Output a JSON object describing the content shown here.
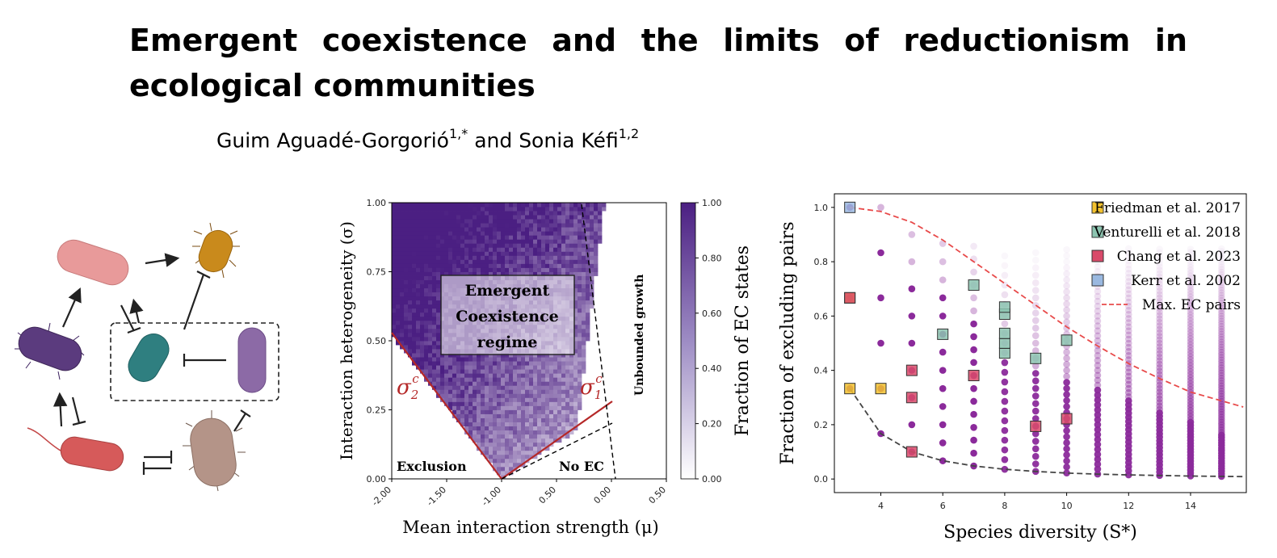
{
  "paper": {
    "title": "Emergent coexistence and the limits of reductionism in ecological communities",
    "authors": [
      {
        "name": "Guim Aguadé-Gorgorió",
        "affil": "1,*"
      },
      {
        "name": "Sonia Kéfi",
        "affil": "1,2"
      }
    ],
    "author_sep": " and "
  },
  "colors": {
    "purple": "#5a2d91",
    "red_line": "#b52828",
    "dashed_red": "#e84a4a",
    "friedman": "#f2c12e",
    "venturelli": "#8cc4b0",
    "chang": "#d94a6a",
    "kerr": "#9ab8e0",
    "dots": "#8b2a9b"
  },
  "bacteria_icons": [
    "pink-bacterium-icon",
    "orange-bacterium-icon",
    "purple-bacterium-icon",
    "teal-bacterium-icon",
    "lavender-bacterium-icon",
    "red-bacterium-icon",
    "tan-bacterium-icon"
  ],
  "chart_data": [
    {
      "type": "heatmap",
      "xlabel": "Mean interaction strength (μ)",
      "ylabel": "Interaction heterogeneity (σ)",
      "xticks": [
        "-2.00",
        "-1.50",
        "-1.00",
        "0.50",
        "0.00",
        "0.50"
      ],
      "yticks": [
        "0.00",
        "0.25",
        "0.50",
        "0.75",
        "1.00"
      ],
      "xlim": [
        -2.0,
        0.5
      ],
      "ylim": [
        0.0,
        1.0
      ],
      "colorbar": {
        "label": "Fraction of EC states",
        "ticks": [
          "0.00",
          "0.20",
          "0.40",
          "0.60",
          "0.80",
          "1.00"
        ]
      },
      "annotations": {
        "box_lines": [
          "Emergent",
          "Coexistence",
          "regime"
        ],
        "exclusion": "Exclusion",
        "no_ec": "No EC",
        "unbounded": "Unbounded growth",
        "sigma2": "σ",
        "sigma2_sub": "2",
        "sigma1": "σ",
        "sigma1_sub": "1",
        "sigma_sup": "c"
      }
    },
    {
      "type": "scatter",
      "xlabel": "Species diversity (S*)",
      "ylabel": "Fraction of excluding pairs",
      "xlim": [
        2.5,
        15.8
      ],
      "ylim": [
        -0.05,
        1.05
      ],
      "xticks": [
        "4",
        "6",
        "8",
        "10",
        "12",
        "14"
      ],
      "yticks": [
        "0.0",
        "0.2",
        "0.4",
        "0.6",
        "0.8",
        "1.0"
      ],
      "legend_position": "top-right",
      "series": [
        {
          "name": "Friedman et al. 2017",
          "marker": "square",
          "color": "#f2c12e",
          "x": [
            3,
            3,
            4
          ],
          "y": [
            0.667,
            0.333,
            0.333
          ]
        },
        {
          "name": "Venturelli et al. 2018",
          "marker": "square",
          "color": "#8cc4b0",
          "x": [
            6,
            7,
            8,
            8,
            8,
            8,
            8,
            9,
            10
          ],
          "y": [
            0.533,
            0.714,
            0.607,
            0.633,
            0.464,
            0.5,
            0.536,
            0.444,
            0.511
          ]
        },
        {
          "name": "Chang et al. 2023",
          "marker": "square",
          "color": "#d94a6a",
          "x": [
            3,
            5,
            5,
            5,
            7,
            9,
            10
          ],
          "y": [
            0.667,
            0.4,
            0.3,
            0.1,
            0.381,
            0.194,
            0.222
          ]
        },
        {
          "name": "Kerr et al. 2002",
          "marker": "square",
          "color": "#9ab8e0",
          "x": [
            3
          ],
          "y": [
            1.0
          ]
        },
        {
          "name": "Max. EC pairs",
          "marker": "dashed-line",
          "color": "#e84a4a",
          "x": [
            3,
            4,
            5,
            6,
            7,
            8,
            9,
            10,
            11,
            12,
            13,
            14,
            15.7
          ],
          "y": [
            1.0,
            0.985,
            0.945,
            0.88,
            0.8,
            0.72,
            0.64,
            0.56,
            0.49,
            0.425,
            0.37,
            0.32,
            0.265
          ]
        },
        {
          "name": "",
          "marker": "dashed-line",
          "color": "#444444",
          "x": [
            3,
            4,
            5,
            6,
            7,
            8,
            9,
            10,
            11,
            12,
            13,
            14,
            15.7
          ],
          "y": [
            0.333,
            0.167,
            0.1,
            0.067,
            0.048,
            0.036,
            0.028,
            0.022,
            0.018,
            0.015,
            0.013,
            0.011,
            0.009
          ]
        }
      ],
      "simulated_dots": {
        "color": "#8b2a9b",
        "columns": [
          {
            "x": 3,
            "y": [
              0.333,
              0.667,
              1.0
            ],
            "faded": []
          },
          {
            "x": 4,
            "y": [
              0.167,
              0.333,
              0.5,
              0.667,
              0.833
            ],
            "faded": [
              1.0
            ]
          },
          {
            "x": 5,
            "y": [
              0.1,
              0.2,
              0.3,
              0.4,
              0.5,
              0.6,
              0.7
            ],
            "faded": [
              0.8,
              0.9
            ]
          },
          {
            "x": 6,
            "y": [
              0.067,
              0.133,
              0.2,
              0.267,
              0.333,
              0.4,
              0.467,
              0.533,
              0.6,
              0.667
            ],
            "faded": [
              0.733,
              0.8,
              0.867
            ]
          },
          {
            "x": 7,
            "y": [
              0.048,
              0.095,
              0.143,
              0.19,
              0.238,
              0.286,
              0.333,
              0.381,
              0.429,
              0.476,
              0.524,
              0.571
            ],
            "faded": [
              0.619,
              0.667,
              0.714,
              0.762,
              0.81,
              0.857
            ]
          }
        ]
      }
    }
  ]
}
